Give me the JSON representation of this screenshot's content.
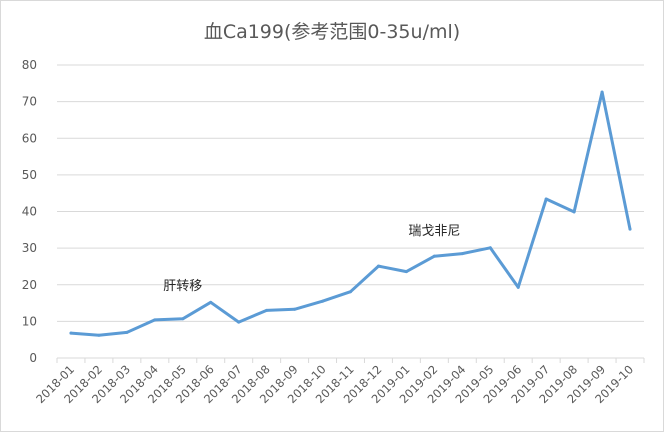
{
  "chart_data": {
    "type": "line",
    "title": "血Ca199(参考范围0-35u/ml)",
    "xlabel": "",
    "ylabel": "",
    "categories": [
      "2018-01",
      "2018-02",
      "2018-03",
      "2018-04",
      "2018-05",
      "2018-06",
      "2018-07",
      "2018-08",
      "2018-09",
      "2018-10",
      "2018-11",
      "2018-12",
      "2019-01",
      "2019-02",
      "2019-04",
      "2019-05",
      "2019-06",
      "2019-07",
      "2019-08",
      "2019-09",
      "2019-10"
    ],
    "series": [
      {
        "values": [
          6.8,
          6.2,
          7.0,
          10.4,
          10.7,
          15.2,
          9.8,
          13.0,
          13.3,
          15.5,
          18.1,
          25.1,
          23.6,
          27.8,
          28.5,
          30.1,
          19.3,
          43.4,
          39.9,
          72.6,
          35.2
        ]
      }
    ],
    "ylim": [
      0,
      80
    ],
    "yticks": [
      0,
      10,
      20,
      30,
      40,
      50,
      60,
      70,
      80
    ],
    "grid": true,
    "legend": "none",
    "annotations": [
      {
        "text": "肝转移",
        "x": "2018-05",
        "y": 20
      },
      {
        "text": "瑞戈非尼",
        "x": "2019-02",
        "y": 35
      }
    ],
    "colors": {
      "line": "#5b9bd5",
      "grid": "#d9d9d9",
      "text": "#595959"
    }
  }
}
